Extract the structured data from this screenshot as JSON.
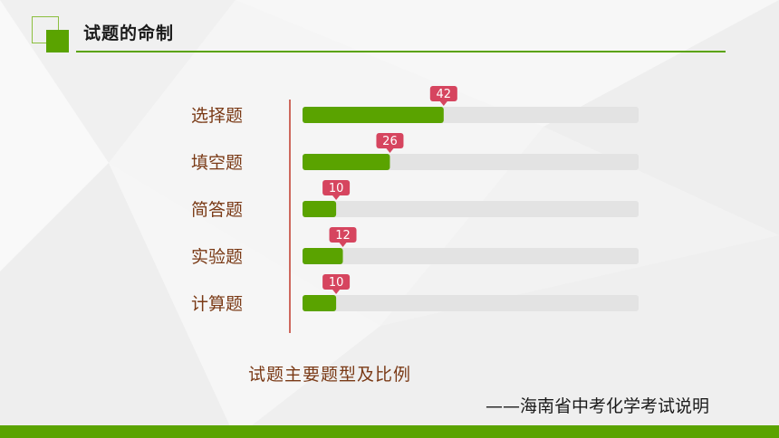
{
  "header": {
    "title": "试题的命制"
  },
  "colors": {
    "accent": "#5aa300",
    "track": "#e3e3e3",
    "label_bubble": "#d6455f",
    "category_text": "#7a3a16",
    "axis_line": "#c0392b"
  },
  "chart_data": {
    "type": "bar",
    "orientation": "horizontal",
    "categories": [
      "选择题",
      "填空题",
      "简答题",
      "实验题",
      "计算题"
    ],
    "values": [
      42,
      26,
      10,
      12,
      10
    ],
    "xlim": [
      0,
      100
    ],
    "title": "",
    "xlabel": "",
    "ylabel": ""
  },
  "caption": "试题主要题型及比例",
  "source": "——海南省中考化学考试说明"
}
